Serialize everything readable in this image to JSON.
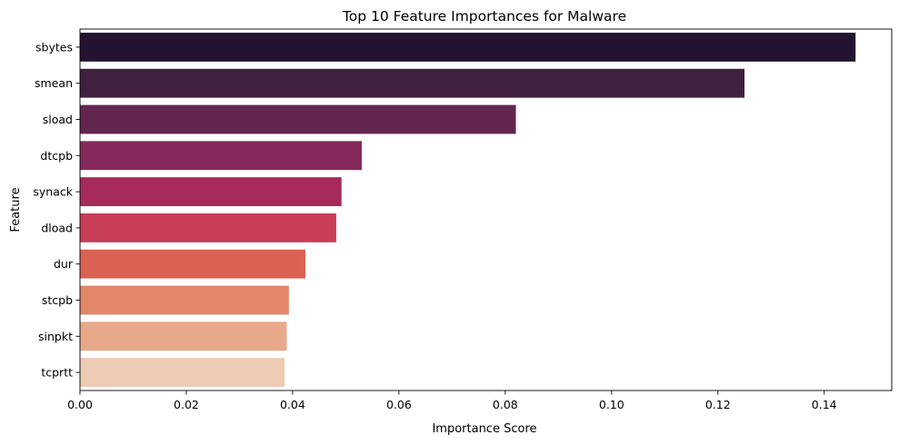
{
  "chart_data": {
    "type": "bar",
    "orientation": "horizontal",
    "title": "Top 10 Feature Importances for Malware",
    "xlabel": "Importance Score",
    "ylabel": "Feature",
    "categories": [
      "sbytes",
      "smean",
      "sload",
      "dtcpb",
      "synack",
      "dload",
      "dur",
      "stcpb",
      "sinpkt",
      "tcprtt"
    ],
    "values": [
      0.1459,
      0.125,
      0.082,
      0.053,
      0.0492,
      0.0482,
      0.0424,
      0.0393,
      0.0389,
      0.0385
    ],
    "colors": [
      "#221331",
      "#40203f",
      "#63264e",
      "#84295a",
      "#a62a5b",
      "#c73c56",
      "#da6253",
      "#e2876a",
      "#e8a98a",
      "#edcab3"
    ],
    "xlim": [
      0,
      0.1527
    ],
    "xticks": [
      0.0,
      0.02,
      0.04,
      0.06,
      0.08,
      0.1,
      0.12,
      0.14
    ],
    "xtick_labels": [
      "0.00",
      "0.02",
      "0.04",
      "0.06",
      "0.08",
      "0.10",
      "0.12",
      "0.14"
    ],
    "grid": false
  }
}
